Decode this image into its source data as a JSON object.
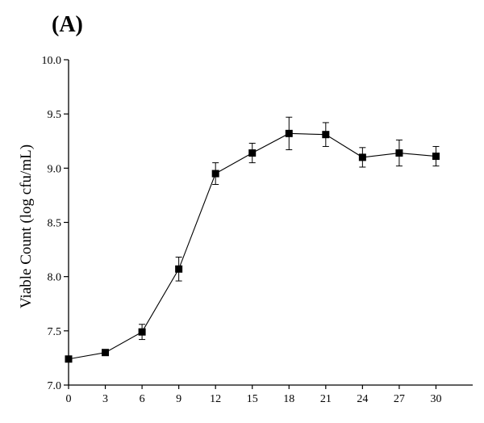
{
  "chart_data": {
    "type": "line",
    "panel_label": "(A)",
    "title": "",
    "xlabel": "",
    "ylabel": "Viable Count (log cfu/mL)",
    "xlim": [
      0,
      33
    ],
    "ylim": [
      7.0,
      10.0
    ],
    "x_ticks": [
      0,
      3,
      6,
      9,
      12,
      15,
      18,
      21,
      24,
      27,
      30
    ],
    "y_ticks": [
      7.0,
      7.5,
      8.0,
      8.5,
      9.0,
      9.5,
      10.0
    ],
    "y_tick_labels": [
      "7.0",
      "7.5",
      "8.0",
      "8.5",
      "9.0",
      "9.5",
      "10.0"
    ],
    "grid": false,
    "series": [
      {
        "x": [
          0,
          3,
          6,
          9,
          12,
          15,
          18,
          21,
          24,
          27,
          30
        ],
        "values": [
          7.24,
          7.3,
          7.49,
          8.07,
          8.95,
          9.14,
          9.32,
          9.31,
          9.1,
          9.14,
          9.11
        ],
        "error": [
          0.0,
          0.0,
          0.07,
          0.11,
          0.1,
          0.09,
          0.15,
          0.11,
          0.09,
          0.12,
          0.09
        ],
        "marker": "square",
        "color": "#000000"
      }
    ]
  }
}
